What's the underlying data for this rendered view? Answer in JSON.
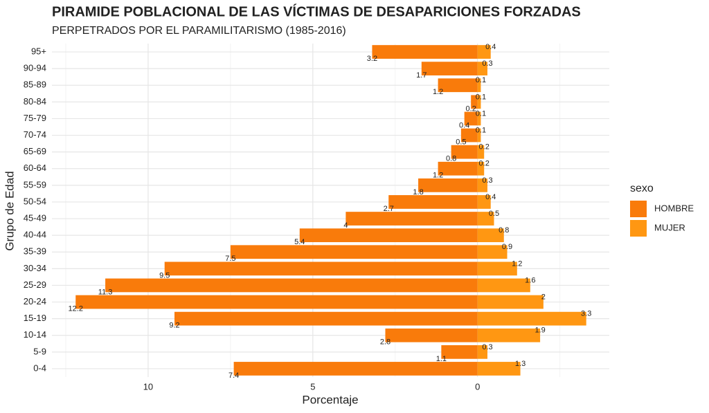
{
  "chart_data": {
    "type": "pyramid",
    "title": "PIRAMIDE POBLACIONAL DE LAS VÍCTIMAS DE DESAPARICIONES FORZADAS",
    "subtitle": "PERPETRADOS POR EL PARAMILITARISMO (1985-2016)",
    "x_label": "Porcentaje",
    "y_label": "Grupo de Edad",
    "legend_title": "sexo",
    "categories": [
      "0-4",
      "5-9",
      "10-14",
      "15-19",
      "20-24",
      "25-29",
      "30-34",
      "35-39",
      "40-44",
      "45-49",
      "50-54",
      "55-59",
      "60-64",
      "65-69",
      "70-74",
      "75-79",
      "80-84",
      "85-89",
      "90-94",
      "95+"
    ],
    "series": [
      {
        "name": "HOMBRE",
        "color": "#f97b0b",
        "values": [
          -7.4,
          -1.1,
          -2.8,
          -9.2,
          -12.2,
          -11.3,
          -9.5,
          -7.5,
          -5.4,
          -4,
          -2.7,
          -1.8,
          -1.2,
          -0.8,
          -0.5,
          -0.4,
          -0.2,
          -1.2,
          -1.7,
          -3.2
        ],
        "value_labels": [
          "7.4",
          "1.1",
          "2.8",
          "9.2",
          "12.2",
          "11.3",
          "9.5",
          "7.5",
          "5.4",
          "4",
          "2.7",
          "1.8",
          "1.2",
          "0.8",
          "0.5",
          "0.4",
          "0.2",
          "1.2",
          "1.7",
          "3.2"
        ]
      },
      {
        "name": "MUJER",
        "color": "#ff9712",
        "values": [
          1.3,
          0.3,
          1.9,
          3.3,
          2,
          1.6,
          1.2,
          0.9,
          0.8,
          0.5,
          0.4,
          0.3,
          0.2,
          0.2,
          0.1,
          0.1,
          0.1,
          0.1,
          0.3,
          0.4
        ]
      }
    ],
    "xlim": [
      -12.92,
      4
    ],
    "xticks": [
      {
        "value": -10,
        "label": "10"
      },
      {
        "value": -5,
        "label": "5"
      },
      0
    ],
    "grid": true,
    "legend": "right"
  }
}
